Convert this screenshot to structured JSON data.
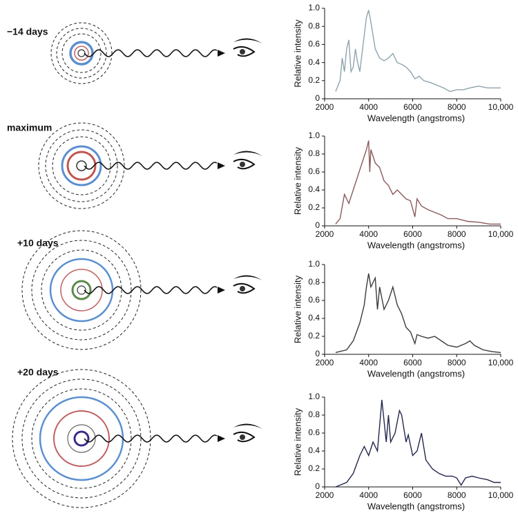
{
  "chart_data": [
    {
      "type": "line",
      "title": "−14 days",
      "x_label": "Wavelength (angstroms)",
      "y_label": "Relative intensity",
      "x": [
        2500,
        2700,
        2800,
        2900,
        3000,
        3100,
        3200,
        3300,
        3400,
        3500,
        3600,
        3700,
        3800,
        3900,
        4000,
        4100,
        4300,
        4500,
        4700,
        4900,
        5100,
        5300,
        5500,
        5700,
        5900,
        6100,
        6300,
        6500,
        6800,
        7100,
        7400,
        7700,
        8000,
        8300,
        8600,
        9000,
        9400,
        9700,
        10000
      ],
      "values": [
        0.08,
        0.2,
        0.45,
        0.3,
        0.55,
        0.65,
        0.3,
        0.35,
        0.55,
        0.4,
        0.3,
        0.5,
        0.7,
        0.9,
        0.98,
        0.85,
        0.55,
        0.45,
        0.42,
        0.45,
        0.5,
        0.4,
        0.38,
        0.35,
        0.3,
        0.22,
        0.25,
        0.2,
        0.18,
        0.15,
        0.12,
        0.08,
        0.1,
        0.1,
        0.12,
        0.14,
        0.12,
        0.12,
        0.12
      ],
      "color": "#8fa3ad",
      "xlim": [
        2000,
        10000
      ],
      "xticks": [
        2000,
        4000,
        6000,
        8000,
        {
          "value": 10000,
          "label": "10,000"
        }
      ],
      "ylim": [
        0,
        1
      ],
      "yticks": [
        0,
        0.2,
        0.4,
        0.6,
        0.8,
        {
          "value": 1,
          "label": "1.0"
        }
      ]
    },
    {
      "type": "line",
      "title": "maximum",
      "x_label": "Wavelength (angstroms)",
      "y_label": "Relative intensity",
      "x": [
        2500,
        2700,
        2900,
        3100,
        3300,
        3500,
        3700,
        3900,
        4000,
        4050,
        4100,
        4300,
        4500,
        4700,
        4900,
        5100,
        5300,
        5500,
        5700,
        5900,
        6100,
        6200,
        6400,
        6700,
        7000,
        7300,
        7600,
        8000,
        8500,
        9000,
        9500,
        10000
      ],
      "values": [
        0.02,
        0.08,
        0.35,
        0.25,
        0.4,
        0.55,
        0.7,
        0.85,
        0.95,
        0.6,
        0.85,
        0.7,
        0.65,
        0.5,
        0.45,
        0.35,
        0.4,
        0.35,
        0.3,
        0.28,
        0.1,
        0.3,
        0.22,
        0.18,
        0.15,
        0.12,
        0.08,
        0.08,
        0.05,
        0.04,
        0.02,
        0.02
      ],
      "color": "#8a5a5a",
      "xlim": [
        2000,
        10000
      ],
      "xticks": [
        2000,
        4000,
        6000,
        8000,
        {
          "value": 10000,
          "label": "10,000"
        }
      ],
      "ylim": [
        0,
        1
      ],
      "yticks": [
        0,
        0.2,
        0.4,
        0.6,
        0.8,
        {
          "value": 1,
          "label": "1.0"
        }
      ]
    },
    {
      "type": "line",
      "title": "+10 days",
      "x_label": "Wavelength (angstroms)",
      "y_label": "Relative intensity",
      "x": [
        2500,
        3000,
        3300,
        3600,
        3800,
        3900,
        4000,
        4100,
        4200,
        4300,
        4400,
        4500,
        4700,
        4900,
        5100,
        5300,
        5500,
        5700,
        5900,
        6100,
        6200,
        6400,
        6700,
        7000,
        7300,
        7600,
        8000,
        8400,
        8600,
        8800,
        9200,
        9600,
        10000
      ],
      "values": [
        0.02,
        0.05,
        0.15,
        0.35,
        0.55,
        0.75,
        0.9,
        0.75,
        0.8,
        0.85,
        0.5,
        0.75,
        0.5,
        0.6,
        0.75,
        0.55,
        0.45,
        0.3,
        0.25,
        0.12,
        0.22,
        0.2,
        0.18,
        0.2,
        0.15,
        0.1,
        0.08,
        0.12,
        0.15,
        0.1,
        0.05,
        0.03,
        0.02
      ],
      "color": "#3a3a3a",
      "xlim": [
        2000,
        10000
      ],
      "xticks": [
        2000,
        4000,
        6000,
        8000,
        {
          "value": 10000,
          "label": "10,000"
        }
      ],
      "ylim": [
        0,
        1
      ],
      "yticks": [
        0,
        0.2,
        0.4,
        0.6,
        0.8,
        {
          "value": 1,
          "label": "1.0"
        }
      ]
    },
    {
      "type": "line",
      "title": "+20 days",
      "x_label": "Wavelength (angstroms)",
      "y_label": "Relative intensity",
      "x": [
        2500,
        3000,
        3300,
        3600,
        3800,
        4000,
        4200,
        4400,
        4600,
        4800,
        4900,
        5000,
        5200,
        5400,
        5500,
        5700,
        5800,
        6000,
        6200,
        6400,
        6600,
        6900,
        7200,
        7500,
        7800,
        8000,
        8200,
        8400,
        8700,
        9000,
        9400,
        9700,
        10000
      ],
      "values": [
        0,
        0.05,
        0.15,
        0.35,
        0.45,
        0.35,
        0.5,
        0.4,
        0.97,
        0.5,
        0.8,
        0.5,
        0.6,
        0.85,
        0.8,
        0.5,
        0.58,
        0.35,
        0.4,
        0.6,
        0.3,
        0.2,
        0.15,
        0.12,
        0.12,
        0.1,
        0.02,
        0.1,
        0.12,
        0.1,
        0.08,
        0.05,
        0.05
      ],
      "color": "#22264a",
      "xlim": [
        2000,
        10000
      ],
      "xticks": [
        2000,
        4000,
        6000,
        8000,
        {
          "value": 10000,
          "label": "10,000"
        }
      ],
      "ylim": [
        0,
        1
      ],
      "yticks": [
        0,
        0.2,
        0.4,
        0.6,
        0.8,
        {
          "value": 1,
          "label": "1.0"
        }
      ]
    }
  ]
}
